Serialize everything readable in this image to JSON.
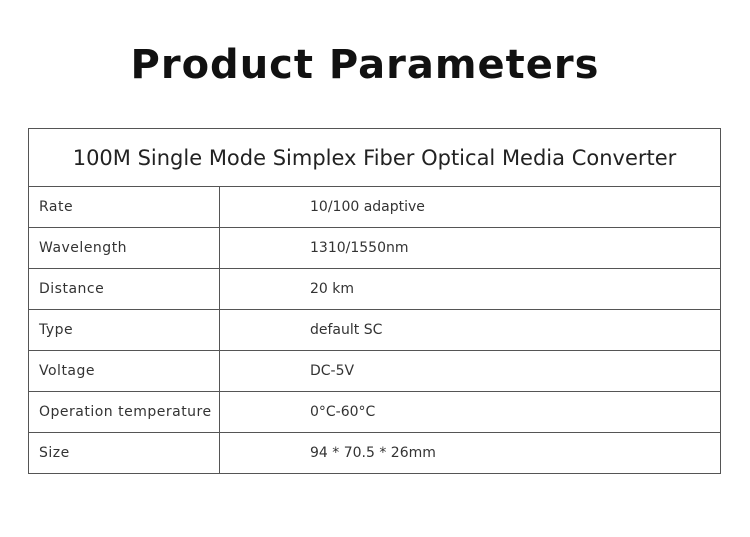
{
  "header": {
    "title": "Product Parameters"
  },
  "table": {
    "caption": "100M Single Mode Simplex Fiber Optical Media Converter",
    "rows": [
      [
        "Rate",
        "10/100 adaptive"
      ],
      [
        "Wavelength",
        "1310/1550nm"
      ],
      [
        "Distance",
        "20 km"
      ],
      [
        "Type",
        "default SC"
      ],
      [
        "Voltage",
        "DC-5V"
      ],
      [
        "Operation temperature",
        "0°C-60°C"
      ],
      [
        "Size",
        "94 * 70.5 * 26mm"
      ]
    ]
  }
}
